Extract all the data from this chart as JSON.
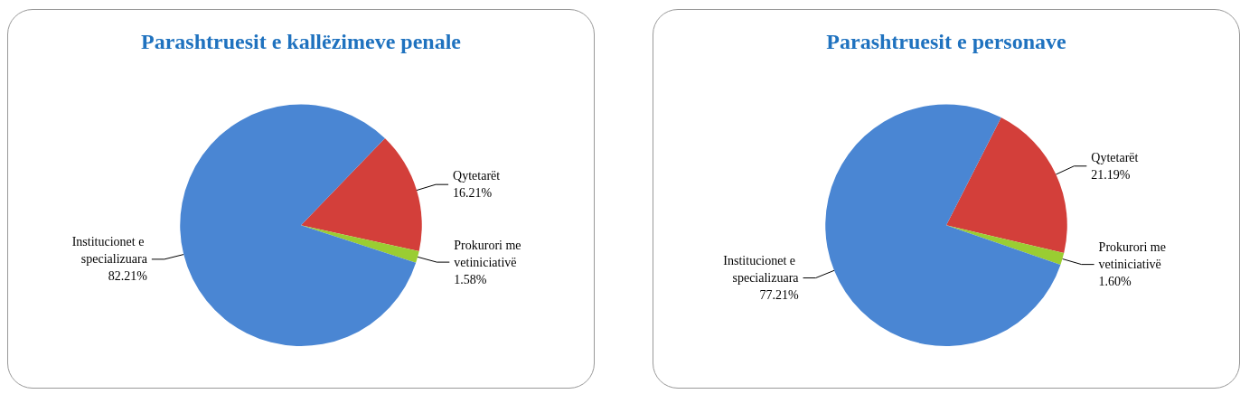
{
  "chart_data": [
    {
      "type": "pie",
      "title": "Parashtruesit e kallëzimeve penale",
      "categories": [
        "Qytetarët",
        "Prokurori me vetiniciativë",
        "Institucionet e specializuara"
      ],
      "values": [
        16.21,
        1.58,
        82.21
      ],
      "value_labels": [
        "16.21%",
        "1.58%",
        "82.21%"
      ],
      "colors": [
        "#d33f3a",
        "#9acd32",
        "#4a86d3"
      ]
    },
    {
      "type": "pie",
      "title": "Parashtruesit e personave",
      "categories": [
        "Qytetarët",
        "Prokurori me vetiniciativë",
        "Institucionet e specializuara"
      ],
      "values": [
        21.19,
        1.6,
        77.21
      ],
      "value_labels": [
        "21.19%",
        "1.60%",
        "77.21%"
      ],
      "colors": [
        "#d33f3a",
        "#9acd32",
        "#4a86d3"
      ]
    }
  ]
}
